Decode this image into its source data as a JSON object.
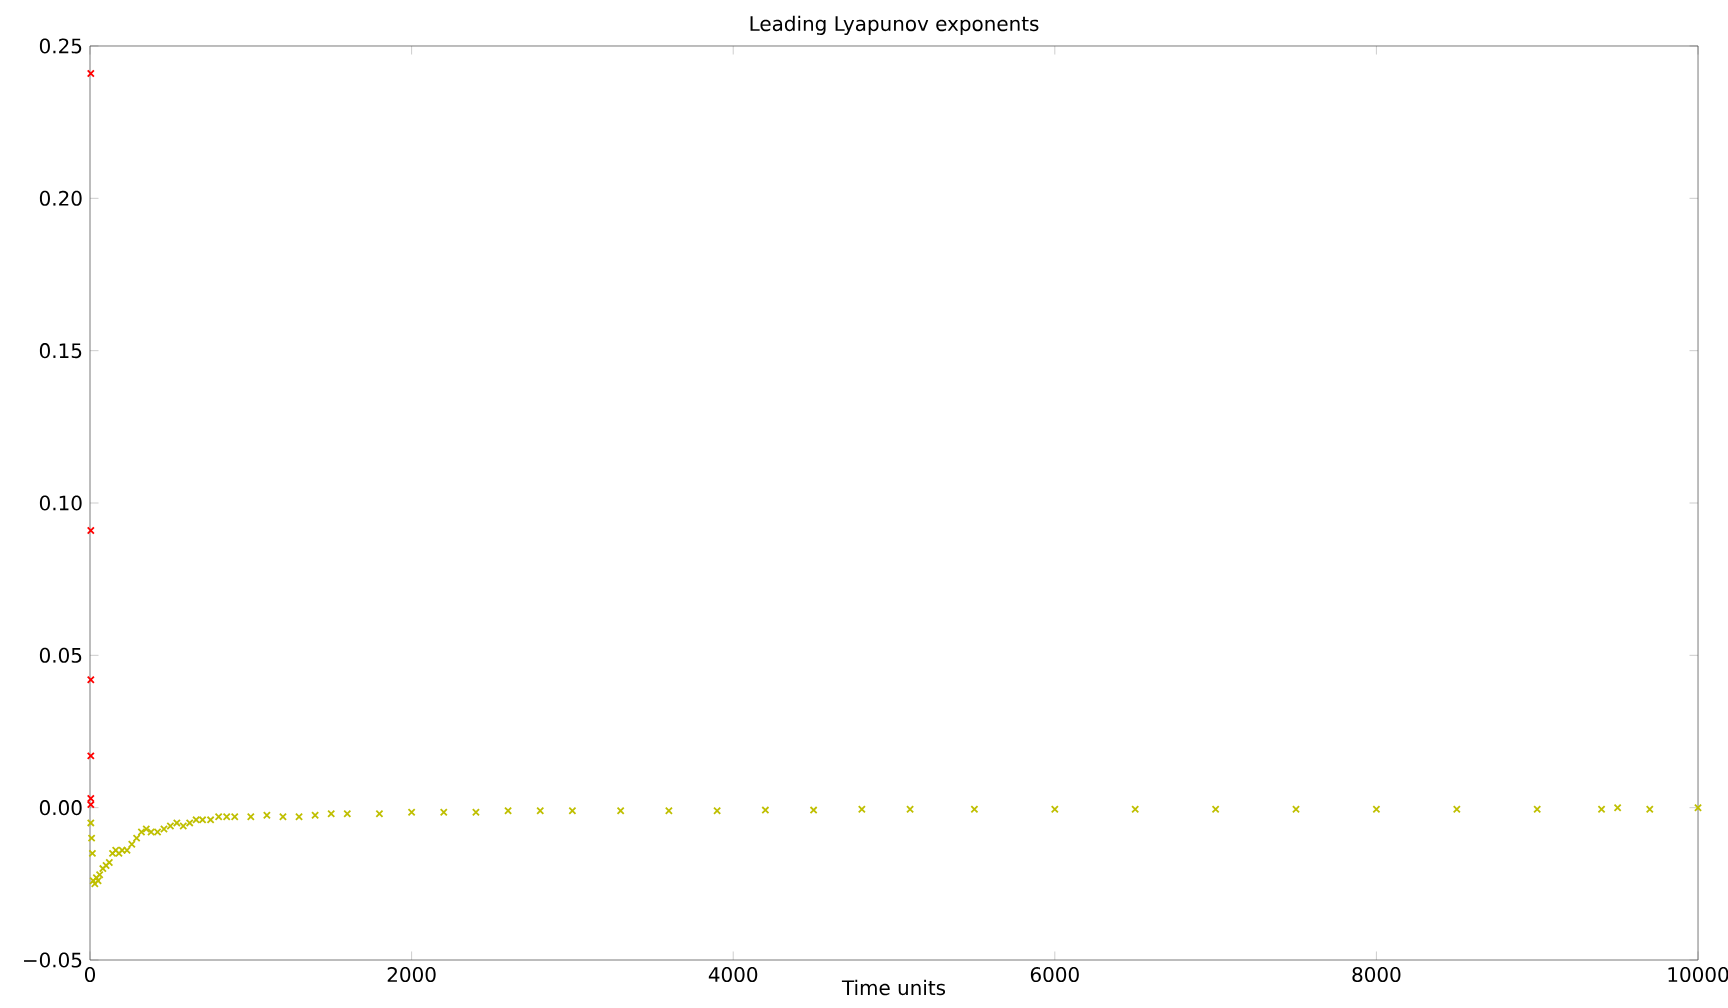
{
  "chart_data": {
    "type": "scatter",
    "title": "Leading Lyapunov exponents",
    "xlabel": "Time units",
    "marker": "cross",
    "xlim": [
      0,
      10000
    ],
    "ylim": [
      -0.05,
      0.25
    ],
    "xticks": [
      0,
      2000,
      4000,
      6000,
      8000,
      10000
    ],
    "yticks": [
      {
        "value": -0.05,
        "label": "−0.05"
      },
      {
        "value": 0,
        "label": "0.00"
      },
      {
        "value": 0.05,
        "label": "0.05"
      },
      {
        "value": 0.1,
        "label": "0.10"
      },
      {
        "value": 0.15,
        "label": "0.15"
      },
      {
        "value": 0.2,
        "label": "0.20"
      },
      {
        "value": 0.25,
        "label": "0.25"
      }
    ],
    "series": [
      {
        "color": "#ff0000",
        "x": [
          5,
          5,
          5,
          5,
          5,
          5
        ],
        "values": [
          0.241,
          0.091,
          0.042,
          0.017,
          0.003,
          0.001
        ]
      },
      {
        "color": "#bfbf00",
        "x": [
          5,
          10,
          15,
          20,
          30,
          40,
          50,
          60,
          80,
          100,
          120,
          140,
          160,
          180,
          200,
          230,
          260,
          290,
          320,
          350,
          380,
          420,
          460,
          500,
          540,
          580,
          620,
          660,
          700,
          750,
          800,
          850,
          900,
          1000,
          1100,
          1200,
          1300,
          1400,
          1500,
          1600,
          1800,
          2000,
          2200,
          2400,
          2600,
          2800,
          3000,
          3300,
          3600,
          3900,
          4200,
          4500,
          4800,
          5100,
          5500,
          6000,
          6500,
          7000,
          7500,
          8000,
          8500,
          9000,
          9400,
          9500,
          9700,
          10000
        ],
        "values": [
          -0.005,
          -0.01,
          -0.015,
          -0.024,
          -0.025,
          -0.023,
          -0.024,
          -0.022,
          -0.02,
          -0.019,
          -0.018,
          -0.015,
          -0.014,
          -0.015,
          -0.014,
          -0.014,
          -0.012,
          -0.01,
          -0.008,
          -0.007,
          -0.008,
          -0.008,
          -0.007,
          -0.006,
          -0.005,
          -0.006,
          -0.005,
          -0.004,
          -0.004,
          -0.004,
          -0.003,
          -0.003,
          -0.003,
          -0.003,
          -0.0025,
          -0.003,
          -0.003,
          -0.0025,
          -0.002,
          -0.002,
          -0.002,
          -0.0015,
          -0.0015,
          -0.0015,
          -0.001,
          -0.001,
          -0.001,
          -0.001,
          -0.001,
          -0.001,
          -0.0008,
          -0.0008,
          -0.0005,
          -0.0005,
          -0.0005,
          -0.0005,
          -0.0005,
          -0.0005,
          -0.0005,
          -0.0005,
          -0.0005,
          -0.0005,
          -0.0005,
          0,
          -0.0005,
          0
        ]
      }
    ]
  }
}
